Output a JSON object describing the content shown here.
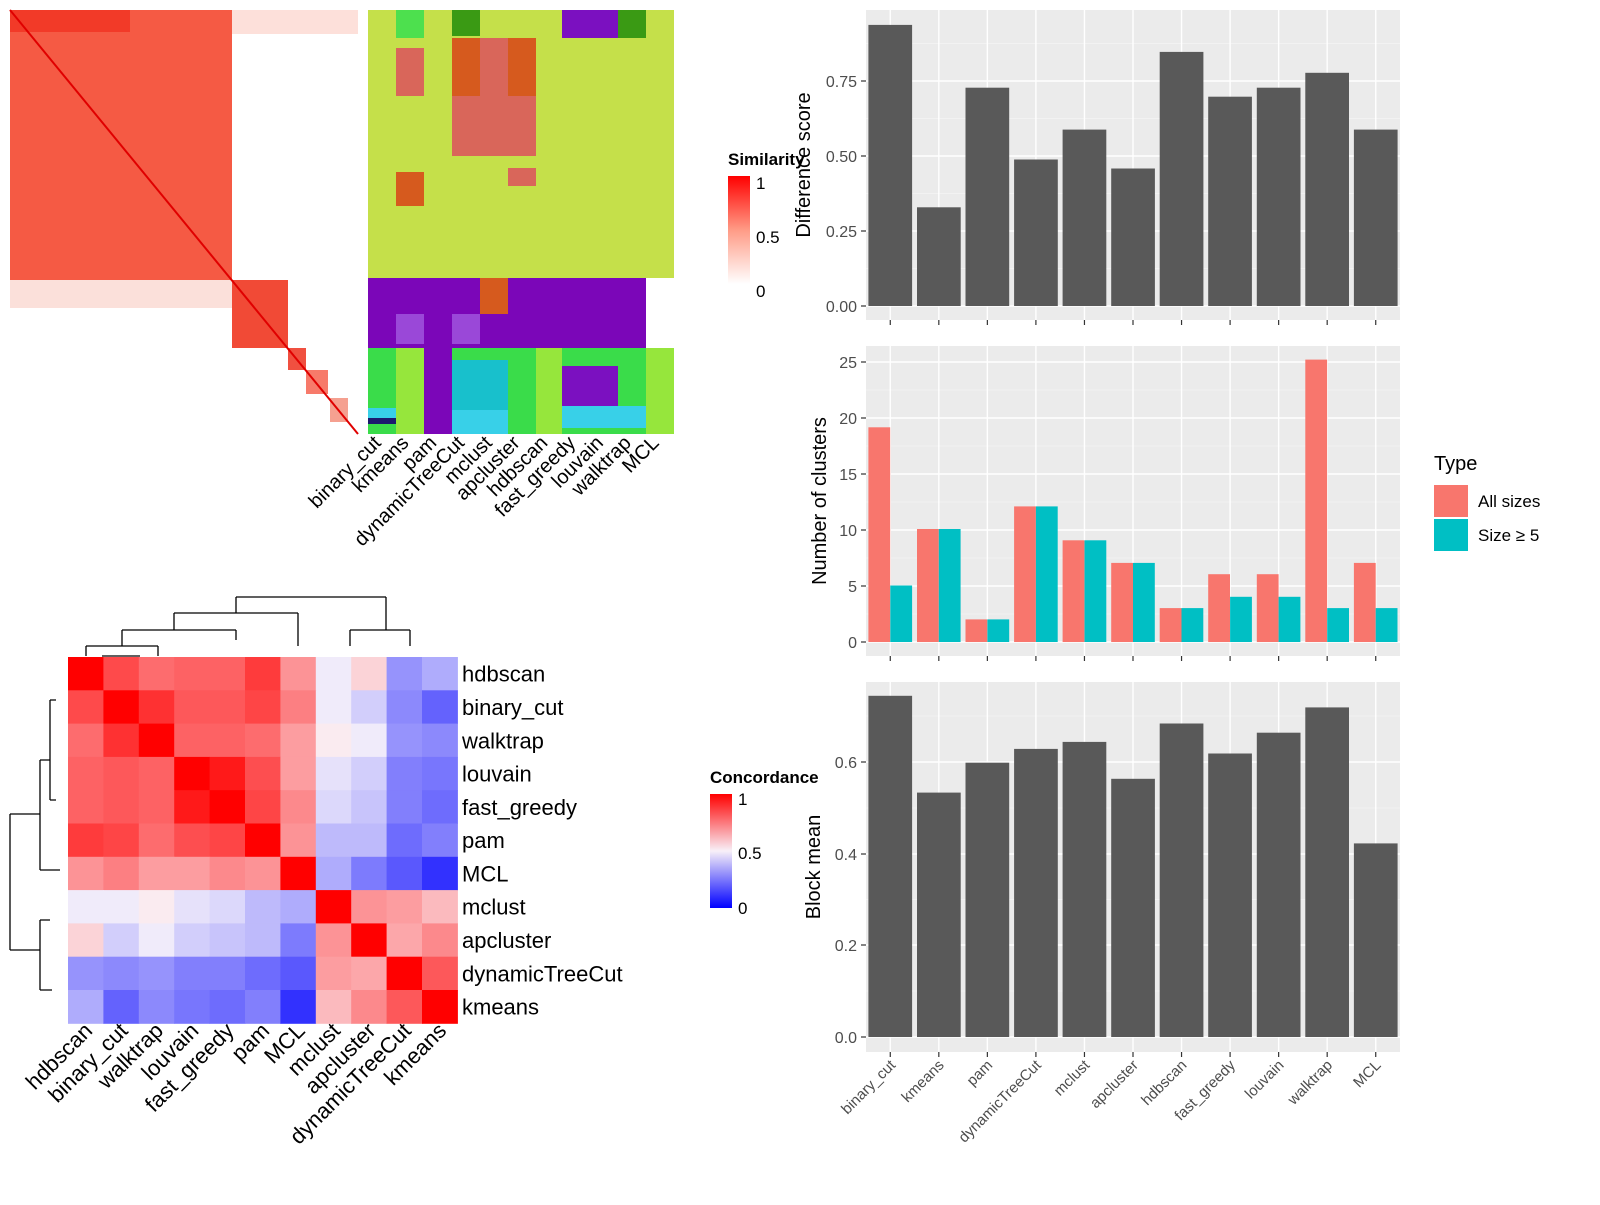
{
  "methods": [
    "binary_cut",
    "kmeans",
    "pam",
    "dynamicTreeCut",
    "mclust",
    "apcluster",
    "hdbscan",
    "fast_greedy",
    "louvain",
    "walktrap",
    "MCL"
  ],
  "similarity_legend": {
    "title": "Similarity",
    "ticks": [
      "1",
      "0.5",
      "0"
    ]
  },
  "concordance_legend": {
    "title": "Concordance",
    "ticks": [
      "1",
      "0.5",
      "0"
    ]
  },
  "concordance_order": [
    "hdbscan",
    "binary_cut",
    "walktrap",
    "louvain",
    "fast_greedy",
    "pam",
    "MCL",
    "mclust",
    "apcluster",
    "dynamicTreeCut",
    "kmeans"
  ],
  "concordance_matrix": [
    [
      1.0,
      0.85,
      0.78,
      0.8,
      0.8,
      0.88,
      0.7,
      0.48,
      0.57,
      0.3,
      0.35
    ],
    [
      0.85,
      1.0,
      0.9,
      0.82,
      0.82,
      0.86,
      0.74,
      0.48,
      0.42,
      0.28,
      0.2
    ],
    [
      0.78,
      0.9,
      1.0,
      0.8,
      0.8,
      0.78,
      0.68,
      0.52,
      0.48,
      0.3,
      0.28
    ],
    [
      0.8,
      0.82,
      0.8,
      1.0,
      0.95,
      0.84,
      0.68,
      0.46,
      0.42,
      0.26,
      0.24
    ],
    [
      0.8,
      0.82,
      0.8,
      0.95,
      1.0,
      0.86,
      0.72,
      0.44,
      0.4,
      0.26,
      0.22
    ],
    [
      0.88,
      0.86,
      0.78,
      0.84,
      0.86,
      1.0,
      0.7,
      0.38,
      0.38,
      0.22,
      0.26
    ],
    [
      0.7,
      0.74,
      0.68,
      0.68,
      0.72,
      0.7,
      1.0,
      0.35,
      0.25,
      0.18,
      0.1
    ],
    [
      0.48,
      0.48,
      0.52,
      0.46,
      0.44,
      0.38,
      0.35,
      1.0,
      0.7,
      0.68,
      0.62
    ],
    [
      0.57,
      0.42,
      0.48,
      0.42,
      0.4,
      0.38,
      0.25,
      0.7,
      1.0,
      0.66,
      0.72
    ],
    [
      0.3,
      0.28,
      0.3,
      0.26,
      0.26,
      0.22,
      0.18,
      0.68,
      0.66,
      1.0,
      0.82
    ],
    [
      0.35,
      0.2,
      0.28,
      0.24,
      0.22,
      0.26,
      0.1,
      0.62,
      0.72,
      0.82,
      1.0
    ]
  ],
  "chart_data": [
    {
      "type": "bar",
      "categories": [
        "binary_cut",
        "kmeans",
        "pam",
        "dynamicTreeCut",
        "mclust",
        "apcluster",
        "hdbscan",
        "fast_greedy",
        "louvain",
        "walktrap",
        "MCL"
      ],
      "values": [
        0.94,
        0.33,
        0.73,
        0.49,
        0.59,
        0.46,
        0.85,
        0.7,
        0.73,
        0.78,
        0.59
      ],
      "ylabel": "Difference score",
      "ylim": [
        0,
        0.99
      ],
      "yticks": [
        "0.00",
        "0.25",
        "0.50",
        "0.75"
      ],
      "grid": true,
      "color": "#595959"
    },
    {
      "type": "bar",
      "categories": [
        "binary_cut",
        "kmeans",
        "pam",
        "dynamicTreeCut",
        "mclust",
        "apcluster",
        "hdbscan",
        "fast_greedy",
        "louvain",
        "walktrap",
        "MCL"
      ],
      "series": [
        {
          "name": "All sizes",
          "values": [
            19,
            10,
            2,
            12,
            9,
            7,
            3,
            6,
            6,
            25,
            7
          ],
          "color": "#F8766D"
        },
        {
          "name": "Size ≥ 5",
          "values": [
            5,
            10,
            2,
            12,
            9,
            7,
            3,
            4,
            4,
            3,
            3
          ],
          "color": "#00BFC4"
        }
      ],
      "ylabel": "Number of clusters",
      "ylim": [
        0,
        26.2
      ],
      "yticks": [
        "0",
        "5",
        "10",
        "15",
        "20",
        "25"
      ],
      "legend": {
        "title": "Type",
        "position": "right"
      },
      "grid": true
    },
    {
      "type": "bar",
      "categories": [
        "binary_cut",
        "kmeans",
        "pam",
        "dynamicTreeCut",
        "mclust",
        "apcluster",
        "hdbscan",
        "fast_greedy",
        "louvain",
        "walktrap",
        "MCL"
      ],
      "values": [
        0.74,
        0.53,
        0.595,
        0.625,
        0.64,
        0.56,
        0.68,
        0.615,
        0.66,
        0.715,
        0.42
      ],
      "ylabel": "Block mean",
      "ylim": [
        0,
        0.77
      ],
      "yticks": [
        "0.0",
        "0.2",
        "0.4",
        "0.6"
      ],
      "grid": true,
      "color": "#595959"
    }
  ]
}
